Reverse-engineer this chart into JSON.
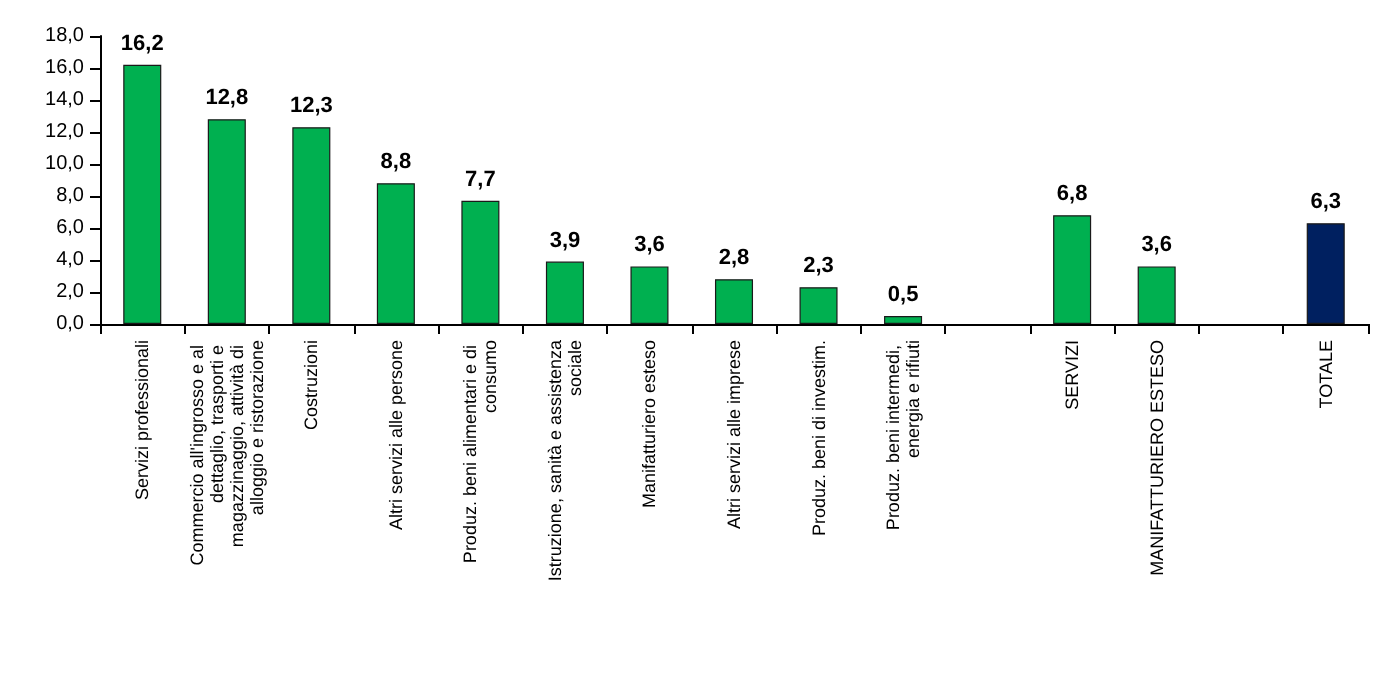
{
  "chart_data": {
    "type": "bar",
    "categories": [
      "Servizi professionali",
      "Commercio all'ingrosso e al dettaglio, trasporti e magazzinaggio, attività di alloggio e ristorazione",
      "Costruzioni",
      "Altri servizi alle persone",
      "Produz. beni alimentari e di consumo",
      "Istruzione, sanità e assistenza sociale",
      "Manifatturiero esteso",
      "Altri servizi alle imprese",
      "Produz. beni di investim.",
      "Produz. beni intermedi, energia e rifiuti",
      null,
      "SERVIZI",
      "MANIFATTURIERO ESTESO",
      null,
      "TOTALE"
    ],
    "values": [
      16.2,
      12.8,
      12.3,
      8.8,
      7.7,
      3.9,
      3.6,
      2.8,
      2.3,
      0.5,
      null,
      6.8,
      3.6,
      null,
      6.3
    ],
    "colors": [
      "#00b050",
      "#00b050",
      "#00b050",
      "#00b050",
      "#00b050",
      "#00b050",
      "#00b050",
      "#00b050",
      "#00b050",
      "#00b050",
      "#00b050",
      "#00b050",
      "#00b050",
      "#00b050",
      "#002060"
    ],
    "value_labels": [
      "16,2",
      "12,8",
      "12,3",
      "8,8",
      "7,7",
      "3,9",
      "3,6",
      "2,8",
      "2,3",
      "0,5",
      null,
      "6,8",
      "3,6",
      null,
      "6,3"
    ],
    "ylim": [
      0,
      18
    ],
    "yticks": [
      {
        "value": 0,
        "label": "0,0"
      },
      {
        "value": 2,
        "label": "2,0"
      },
      {
        "value": 4,
        "label": "4,0"
      },
      {
        "value": 6,
        "label": "6,0"
      },
      {
        "value": 8,
        "label": "8,0"
      },
      {
        "value": 10,
        "label": "10,0"
      },
      {
        "value": 12,
        "label": "12,0"
      },
      {
        "value": 14,
        "label": "14,0"
      },
      {
        "value": 16,
        "label": "16,0"
      },
      {
        "value": 18,
        "label": "18,0"
      }
    ],
    "grid": false
  }
}
